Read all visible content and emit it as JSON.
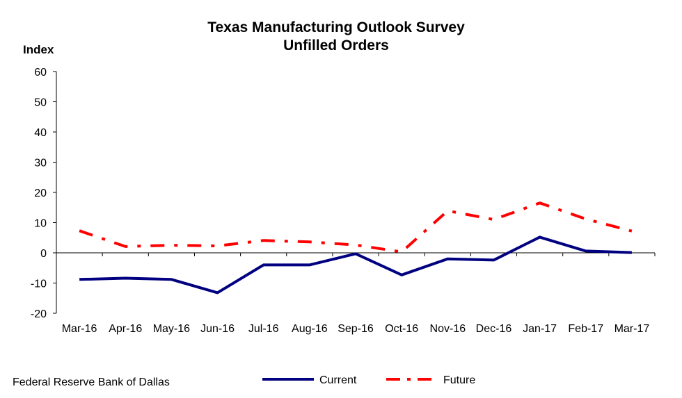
{
  "header": {
    "title_line1": "Texas Manufacturing Outlook Survey",
    "title_line2": "Unfilled Orders",
    "ylabel": "Index"
  },
  "source": "Federal Reserve Bank of Dallas",
  "colors": {
    "current": "#000080",
    "future": "#ff0000",
    "axis": "#000000"
  },
  "chart_data": {
    "type": "line",
    "title": "Texas Manufacturing Outlook Survey Unfilled Orders",
    "xlabel": "",
    "ylabel": "Index",
    "ylim": [
      -20,
      60
    ],
    "yticks": [
      -20,
      -10,
      0,
      10,
      20,
      30,
      40,
      50,
      60
    ],
    "grid": false,
    "legend": "bottom-center",
    "categories": [
      "Mar-16",
      "Apr-16",
      "May-16",
      "Jun-16",
      "Jul-16",
      "Aug-16",
      "Sep-16",
      "Oct-16",
      "Nov-16",
      "Dec-16",
      "Jan-17",
      "Feb-17",
      "Mar-17"
    ],
    "series": [
      {
        "name": "Current",
        "style": "solid",
        "values": [
          -8.8,
          -8.4,
          -8.8,
          -13.2,
          -4.0,
          -4.0,
          -0.3,
          -7.3,
          -2.0,
          -2.4,
          5.2,
          0.6,
          0.1
        ]
      },
      {
        "name": "Future",
        "style": "dash-dot",
        "values": [
          7.3,
          2.1,
          2.5,
          2.3,
          4.1,
          3.6,
          2.6,
          0.3,
          13.9,
          11.0,
          16.5,
          11.2,
          7.2
        ]
      }
    ]
  }
}
